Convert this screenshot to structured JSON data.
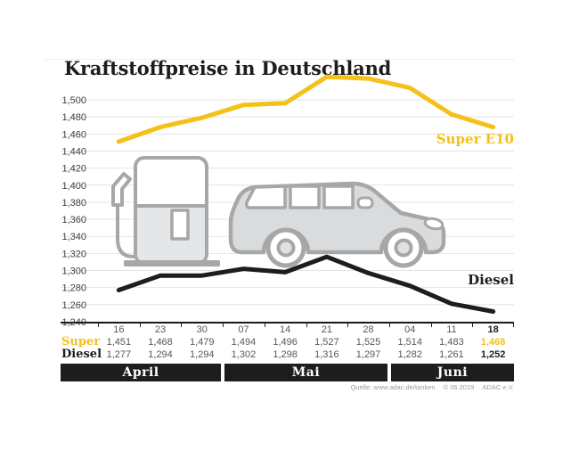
{
  "title": "Kraftstoffpreise in Deutschland",
  "chart_data": {
    "type": "line",
    "title": "Kraftstoffpreise in Deutschland",
    "x": [
      "16",
      "23",
      "30",
      "07",
      "14",
      "21",
      "28",
      "04",
      "11",
      "18"
    ],
    "month_groups": [
      {
        "label": "April",
        "span": 3
      },
      {
        "label": "Mai",
        "span": 4
      },
      {
        "label": "Juni",
        "span": 3
      }
    ],
    "ylim": [
      1.24,
      1.5
    ],
    "ytick_step": 0.02,
    "grid": true,
    "legend_position": "inline-right",
    "series": [
      {
        "name": "Super E10",
        "color": "#f3c118",
        "values": [
          1.451,
          1.468,
          1.479,
          1.494,
          1.496,
          1.527,
          1.525,
          1.514,
          1.483,
          1.468
        ]
      },
      {
        "name": "Diesel",
        "color": "#1d1d1b",
        "values": [
          1.277,
          1.294,
          1.294,
          1.302,
          1.298,
          1.316,
          1.297,
          1.282,
          1.261,
          1.252
        ]
      }
    ]
  },
  "table": {
    "dates": [
      "16",
      "23",
      "30",
      "07",
      "14",
      "21",
      "28",
      "04",
      "11",
      "18"
    ],
    "rows": [
      {
        "label": "Super",
        "color": "#f3c118",
        "values": [
          "1,451",
          "1,468",
          "1,479",
          "1,494",
          "1,496",
          "1,527",
          "1,525",
          "1,514",
          "1,483",
          "1,468"
        ]
      },
      {
        "label": "Diesel",
        "color": "#1d1d1b",
        "values": [
          "1,277",
          "1,294",
          "1,294",
          "1,302",
          "1,298",
          "1,316",
          "1,297",
          "1,282",
          "1,261",
          "1,252"
        ]
      }
    ],
    "months": [
      {
        "label": "April",
        "span": 3
      },
      {
        "label": "Mai",
        "span": 4
      },
      {
        "label": "Juni",
        "span": 3
      }
    ],
    "highlight_last_column": true
  },
  "source": {
    "quelle": "Quelle: www.adac.de/tanken",
    "copyright": "© 06.2019",
    "org": "ADAC e.V."
  },
  "colors": {
    "yellow": "#f3c118",
    "black": "#1d1d1b",
    "grid": "#e4e4e4",
    "axis_text": "#3f3f3e",
    "value_text": "#575756",
    "icon_stroke": "#a5a7a9",
    "icon_fill": "#d9dbdd",
    "pump_fill": "#e5e6e8"
  }
}
